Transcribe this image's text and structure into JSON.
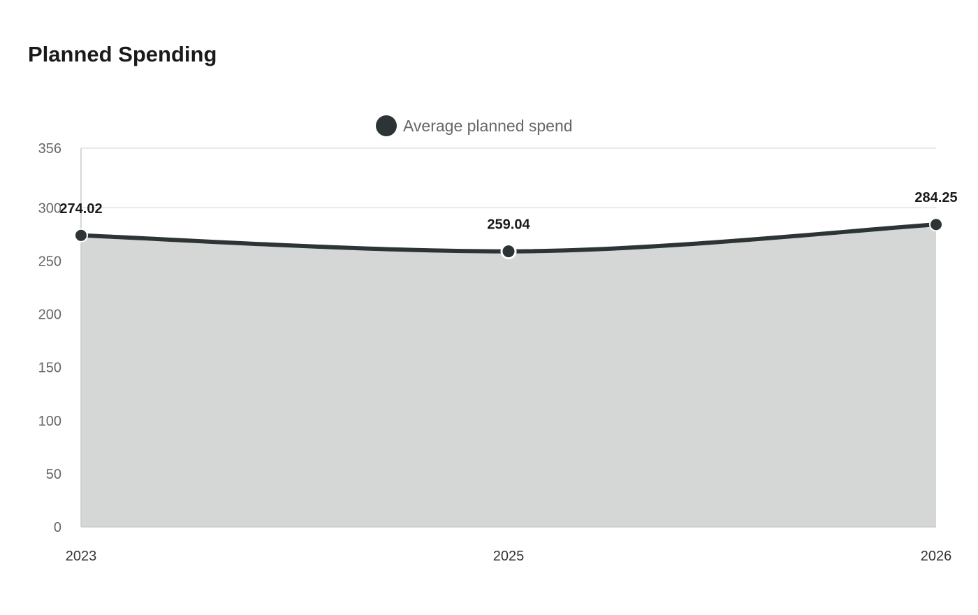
{
  "chart_data": {
    "type": "area",
    "title": "Planned Spending",
    "x": [
      "2023",
      "2025",
      "2026"
    ],
    "series": [
      {
        "name": "Average planned spend",
        "values": [
          274.02,
          259.04,
          284.25
        ],
        "color": "#2d3436",
        "fill_color": "#d5d7d7"
      }
    ],
    "y_ticks": [
      0,
      50,
      100,
      150,
      200,
      250,
      300,
      356
    ],
    "ylim": [
      0,
      356
    ],
    "grid": true,
    "legend": "top-center",
    "curve": "smooth",
    "colors": {
      "grid": "#e3e3e3",
      "axis": "#cccccc"
    }
  }
}
